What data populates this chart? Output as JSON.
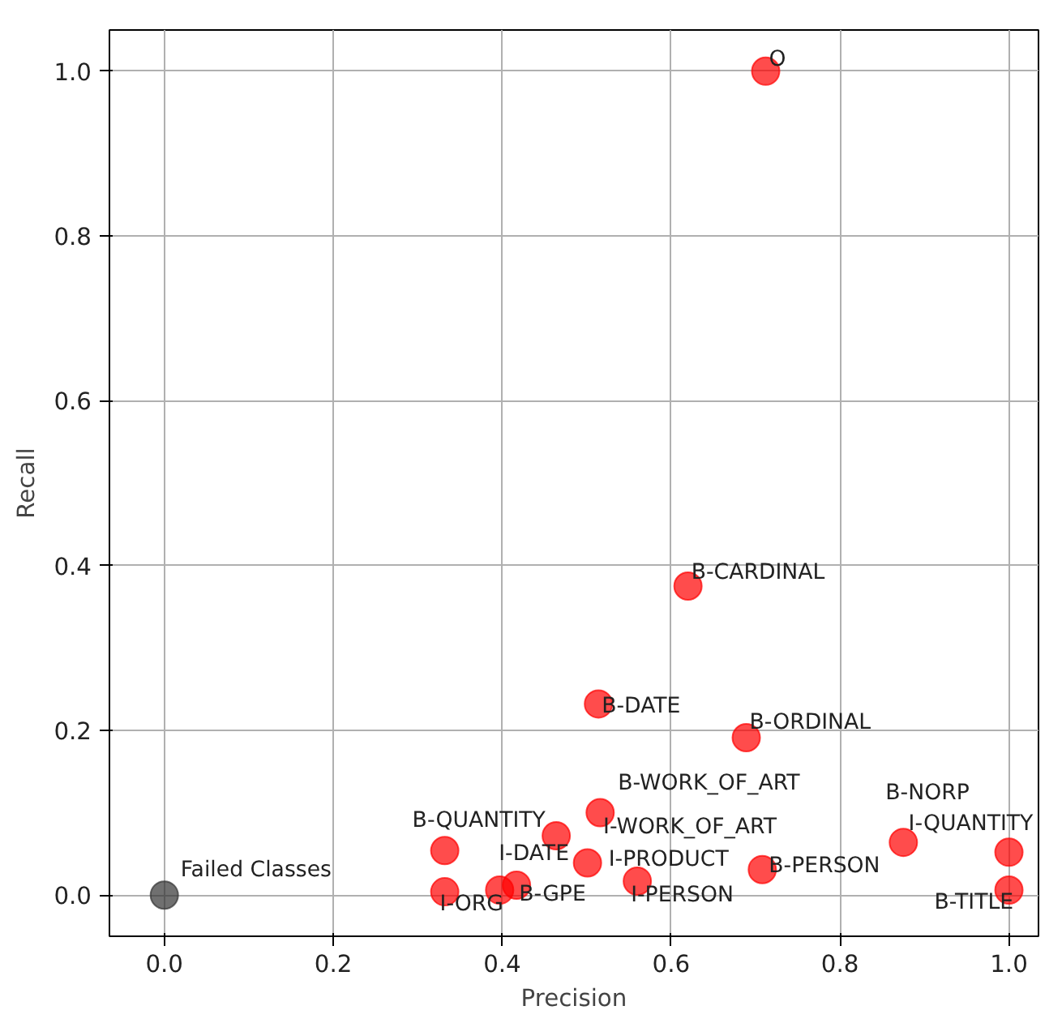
{
  "chart_data": {
    "type": "scatter",
    "xlabel": "Precision",
    "ylabel": "Recall",
    "xlim": [
      -0.065,
      1.035
    ],
    "ylim": [
      -0.05,
      1.05
    ],
    "xticks": [
      {
        "value": 0,
        "label": "0.0"
      },
      0.2,
      0.4,
      0.6,
      0.8,
      {
        "value": 1,
        "label": "1.0"
      }
    ],
    "yticks": [
      {
        "value": 0,
        "label": "0.0"
      },
      0.2,
      0.4,
      0.6,
      0.8,
      {
        "value": 1,
        "label": "1.0"
      }
    ],
    "grid": true,
    "marker": "circle",
    "series": [
      {
        "color": "#ff0000",
        "x": [
          0.712,
          0.62,
          0.514,
          0.689,
          0.516,
          0.464,
          0.332,
          0.417,
          0.501,
          0.708,
          0.875,
          1.0,
          0.332,
          0.397,
          0.56,
          1.0
        ],
        "values": [
          1.0,
          0.375,
          0.232,
          0.191,
          0.1,
          0.072,
          0.054,
          0.012,
          0.039,
          0.031,
          0.064,
          0.052,
          0.004,
          0.006,
          0.017,
          0.006
        ]
      },
      {
        "color": "#333333",
        "x": [
          0.0
        ],
        "values": [
          0.0
        ]
      }
    ],
    "annotations": [
      {
        "text": "O",
        "x": 0.712,
        "y": 1.0
      },
      {
        "text": "B-CARDINAL",
        "x": 0.62,
        "y": 0.375
      },
      {
        "text": "B-DATE",
        "x": 0.514,
        "y": 0.232
      },
      {
        "text": "B-ORDINAL",
        "x": 0.689,
        "y": 0.191
      },
      {
        "text": "B-WORK_OF_ART",
        "x": 0.516,
        "y": 0.1
      },
      {
        "text": "I-WORK_OF_ART",
        "x": 0.464,
        "y": 0.072
      },
      {
        "text": "B-QUANTITY",
        "x": 0.332,
        "y": 0.054
      },
      {
        "text": "I-DATE",
        "x": 0.417,
        "y": 0.012
      },
      {
        "text": "I-PRODUCT",
        "x": 0.501,
        "y": 0.039
      },
      {
        "text": "B-PERSON",
        "x": 0.708,
        "y": 0.031
      },
      {
        "text": "B-NORP",
        "x": 0.875,
        "y": 0.064
      },
      {
        "text": "I-QUANTITY",
        "x": 1.0,
        "y": 0.052
      },
      {
        "text": "I-ORG",
        "x": 0.332,
        "y": 0.004
      },
      {
        "text": "B-GPE",
        "x": 0.397,
        "y": 0.006
      },
      {
        "text": "I-PERSON",
        "x": 0.56,
        "y": 0.017
      },
      {
        "text": "B-TITLE",
        "x": 1.0,
        "y": 0.006
      },
      {
        "text": "Failed Classes",
        "x": 0.0,
        "y": 0.0
      }
    ]
  }
}
